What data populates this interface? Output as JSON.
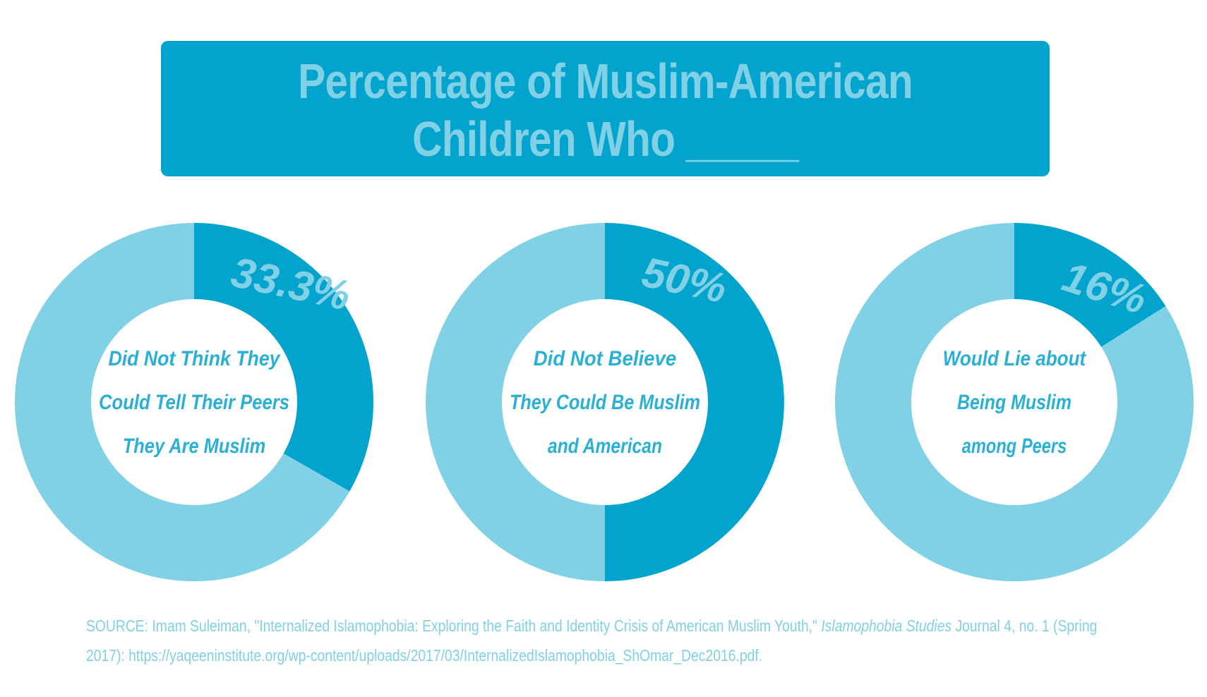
{
  "title": {
    "line1": "Percentage of Muslim-American",
    "line2": "Children Who _____"
  },
  "colors": {
    "primary": "#02a3cd",
    "light": "#80d0e6",
    "label": "#2ab0d4",
    "background": "#ffffff"
  },
  "chart_data": [
    {
      "type": "pie",
      "values": [
        33.3,
        66.7
      ],
      "value_label": "33.3%",
      "center_label": [
        "Did Not Think They",
        "Could Tell Their Peers",
        "They Are Muslim"
      ]
    },
    {
      "type": "pie",
      "values": [
        50,
        50
      ],
      "value_label": "50%",
      "center_label": [
        "Did Not Believe",
        "They Could Be Muslim",
        "and American"
      ]
    },
    {
      "type": "pie",
      "values": [
        16,
        84
      ],
      "value_label": "16%",
      "center_label": [
        "Would Lie about",
        "Being Muslim",
        "among Peers"
      ]
    }
  ],
  "source": {
    "prefix": "SOURCE: Imam Suleiman, \"Internalized Islamophobia: Exploring the Faith and Identity Crisis of American Muslim Youth,\" ",
    "journal": "Islamophobia Studies",
    "suffix": " Journal 4, no. 1 (Spring 2017): https://yaqeeninstitute.org/wp-content/uploads/2017/03/InternalizedIslamophobia_ShOmar_Dec2016.pdf."
  }
}
